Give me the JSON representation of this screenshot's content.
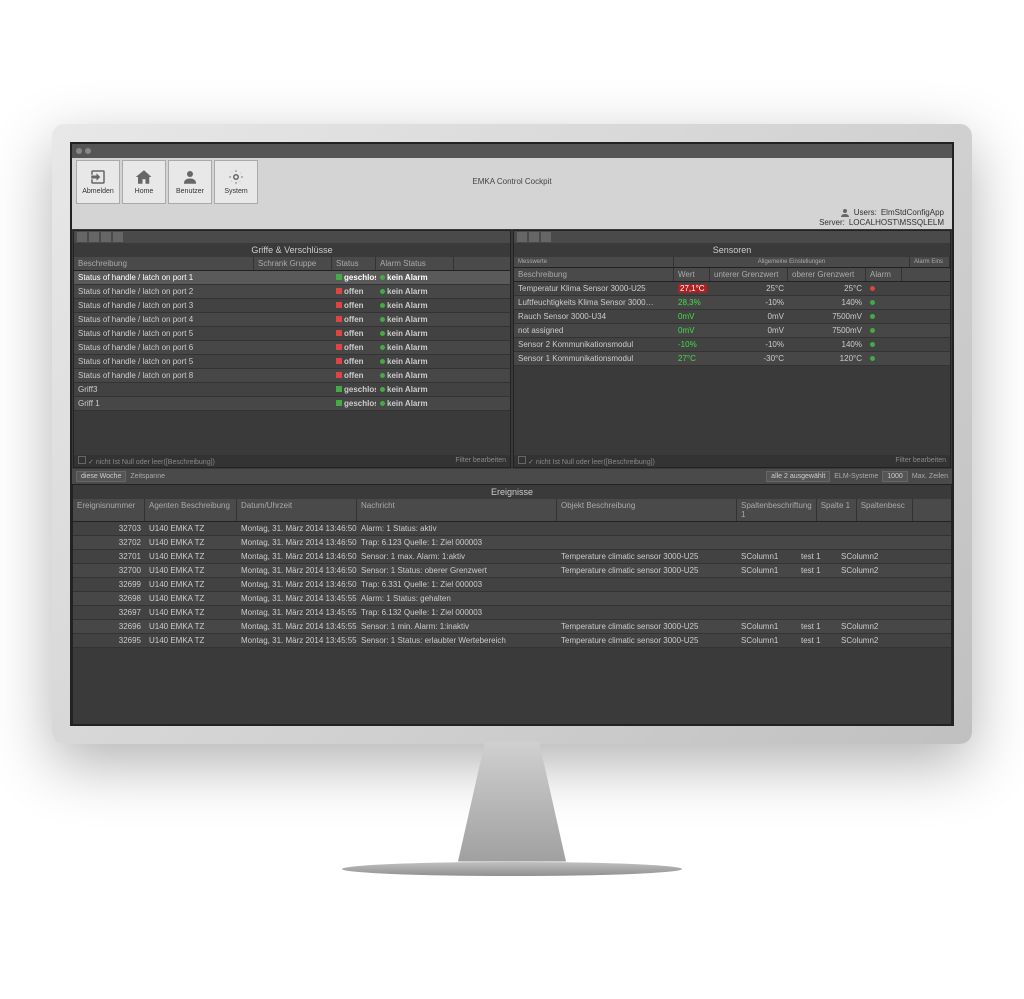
{
  "window": {
    "title": "EMKA Control Cockpit"
  },
  "toolbar": {
    "logout": "Abmelden",
    "home": "Home",
    "user": "Benutzer",
    "system": "System"
  },
  "userbar": {
    "users_label": "Users:",
    "users_val": "ElmStdConfigApp",
    "server_label": "Server:",
    "server_val": "LOCALHOST\\MSSQLELM"
  },
  "griffe": {
    "title": "Griffe & Verschlüsse",
    "cols": {
      "desc": "Beschreibung",
      "group": "Schrank Gruppe",
      "status": "Status",
      "alarm": "Alarm Status"
    },
    "rows": [
      {
        "desc": "Status of handle / latch on port 1",
        "status": "geschlossen",
        "closed": true,
        "alarm": "kein Alarm",
        "sel": true
      },
      {
        "desc": "Status of handle / latch on port 2",
        "status": "offen",
        "closed": false,
        "alarm": "kein Alarm"
      },
      {
        "desc": "Status of handle / latch on port 3",
        "status": "offen",
        "closed": false,
        "alarm": "kein Alarm"
      },
      {
        "desc": "Status of handle / latch on port 4",
        "status": "offen",
        "closed": false,
        "alarm": "kein Alarm"
      },
      {
        "desc": "Status of handle / latch on port 5",
        "status": "offen",
        "closed": false,
        "alarm": "kein Alarm"
      },
      {
        "desc": "Status of handle / latch on port 6",
        "status": "offen",
        "closed": false,
        "alarm": "kein Alarm"
      },
      {
        "desc": "Status of handle / latch on port 5",
        "status": "offen",
        "closed": false,
        "alarm": "kein Alarm"
      },
      {
        "desc": "Status of handle / latch on port 8",
        "status": "offen",
        "closed": false,
        "alarm": "kein Alarm"
      },
      {
        "desc": "Griff3",
        "status": "geschlossen",
        "closed": true,
        "alarm": "kein Alarm"
      },
      {
        "desc": "Griff 1",
        "status": "geschlossen",
        "closed": true,
        "alarm": "kein Alarm"
      }
    ],
    "footer_filter": "nicht Ist Null oder leer([Beschreibung])",
    "footer_edit": "Filter bearbeiten"
  },
  "sensoren": {
    "title": "Sensoren",
    "sub1": "Messwerte",
    "sub2": "Allgemeine Einstellungen",
    "sub3": "Alarm Eins",
    "cols": {
      "desc": "Beschreibung",
      "wert": "Wert",
      "lower": "unterer Grenzwert",
      "upper": "oberer Grenzwert",
      "alarm": "Alarm"
    },
    "rows": [
      {
        "desc": "Temperatur Klima Sensor 3000-U25",
        "wert": "27,1°C",
        "red": true,
        "lower": "25°C",
        "upper": "25°C",
        "dot": "r"
      },
      {
        "desc": "Luftfeuchtigkeits Klima Sensor 3000…",
        "wert": "28,3%",
        "lower": "-10%",
        "upper": "140%",
        "dot": "g"
      },
      {
        "desc": "Rauch Sensor 3000-U34",
        "wert": "0mV",
        "lower": "0mV",
        "upper": "7500mV",
        "dot": "g"
      },
      {
        "desc": "not assigned",
        "wert": "0mV",
        "lower": "0mV",
        "upper": "7500mV",
        "dot": "g"
      },
      {
        "desc": "Sensor 2 Kommunikationsmodul",
        "wert": "-10%",
        "lower": "-10%",
        "upper": "140%",
        "dot": "g"
      },
      {
        "desc": "Sensor 1 Kommunikationsmodul",
        "wert": "27°C",
        "lower": "-30°C",
        "upper": "120°C",
        "dot": "g"
      }
    ],
    "footer_filter": "nicht Ist Null oder leer([Beschreibung])",
    "footer_edit": "Filter bearbeiten"
  },
  "ereignisse": {
    "title": "Ereignisse",
    "filter": {
      "week": "diese Woche",
      "span": "Zeitspanne",
      "sel": "alle 2 ausgewählt",
      "elm": "ELM-Systeme",
      "max": "1000",
      "maxlbl": "Max. Zeilen"
    },
    "cols": {
      "num": "Ereignisnummer",
      "agent": "Agenten Beschreibung",
      "dt": "Datum/Uhrzeit",
      "msg": "Nachricht",
      "obj": "Objekt Beschreibung",
      "col1": "Spaltenbeschriftung 1",
      "sp1": "Spalte 1",
      "sp2": "Spaltenbesc"
    },
    "rows": [
      {
        "num": "32703",
        "agent": "U140 EMKA TZ",
        "dt": "Montag, 31. März 2014 13:46:50",
        "msg": "Alarm: 1 Status: aktiv",
        "obj": "",
        "c1": "",
        "s1": "",
        "s2": ""
      },
      {
        "num": "32702",
        "agent": "U140 EMKA TZ",
        "dt": "Montag, 31. März 2014 13:46:50",
        "msg": "Trap: 6.123 Quelle: 1: Ziel 000003",
        "obj": "",
        "c1": "",
        "s1": "",
        "s2": ""
      },
      {
        "num": "32701",
        "agent": "U140 EMKA TZ",
        "dt": "Montag, 31. März 2014 13:46:50",
        "msg": "Sensor: 1 max. Alarm: 1:aktiv",
        "obj": "Temperature climatic sensor 3000-U25",
        "c1": "SColumn1",
        "s1": "test 1",
        "s2": "SColumn2"
      },
      {
        "num": "32700",
        "agent": "U140 EMKA TZ",
        "dt": "Montag, 31. März 2014 13:46:50",
        "msg": "Sensor: 1 Status: oberer Grenzwert",
        "obj": "Temperature climatic sensor 3000-U25",
        "c1": "SColumn1",
        "s1": "test 1",
        "s2": "SColumn2"
      },
      {
        "num": "32699",
        "agent": "U140 EMKA TZ",
        "dt": "Montag, 31. März 2014 13:46:50",
        "msg": "Trap: 6.331 Quelle: 1: Ziel 000003",
        "obj": "",
        "c1": "",
        "s1": "",
        "s2": ""
      },
      {
        "num": "32698",
        "agent": "U140 EMKA TZ",
        "dt": "Montag, 31. März 2014 13:45:55",
        "msg": "Alarm: 1 Status: gehalten",
        "obj": "",
        "c1": "",
        "s1": "",
        "s2": ""
      },
      {
        "num": "32697",
        "agent": "U140 EMKA TZ",
        "dt": "Montag, 31. März 2014 13:45:55",
        "msg": "Trap: 6.132 Quelle: 1: Ziel 000003",
        "obj": "",
        "c1": "",
        "s1": "",
        "s2": ""
      },
      {
        "num": "32696",
        "agent": "U140 EMKA TZ",
        "dt": "Montag, 31. März 2014 13:45:55",
        "msg": "Sensor: 1 min. Alarm: 1:inaktiv",
        "obj": "Temperature climatic sensor 3000-U25",
        "c1": "SColumn1",
        "s1": "test 1",
        "s2": "SColumn2"
      },
      {
        "num": "32695",
        "agent": "U140 EMKA TZ",
        "dt": "Montag, 31. März 2014 13:45:55",
        "msg": "Sensor: 1 Status: erlaubter Wertebereich",
        "obj": "Temperature climatic sensor 3000-U25",
        "c1": "SColumn1",
        "s1": "test 1",
        "s2": "SColumn2"
      }
    ]
  }
}
